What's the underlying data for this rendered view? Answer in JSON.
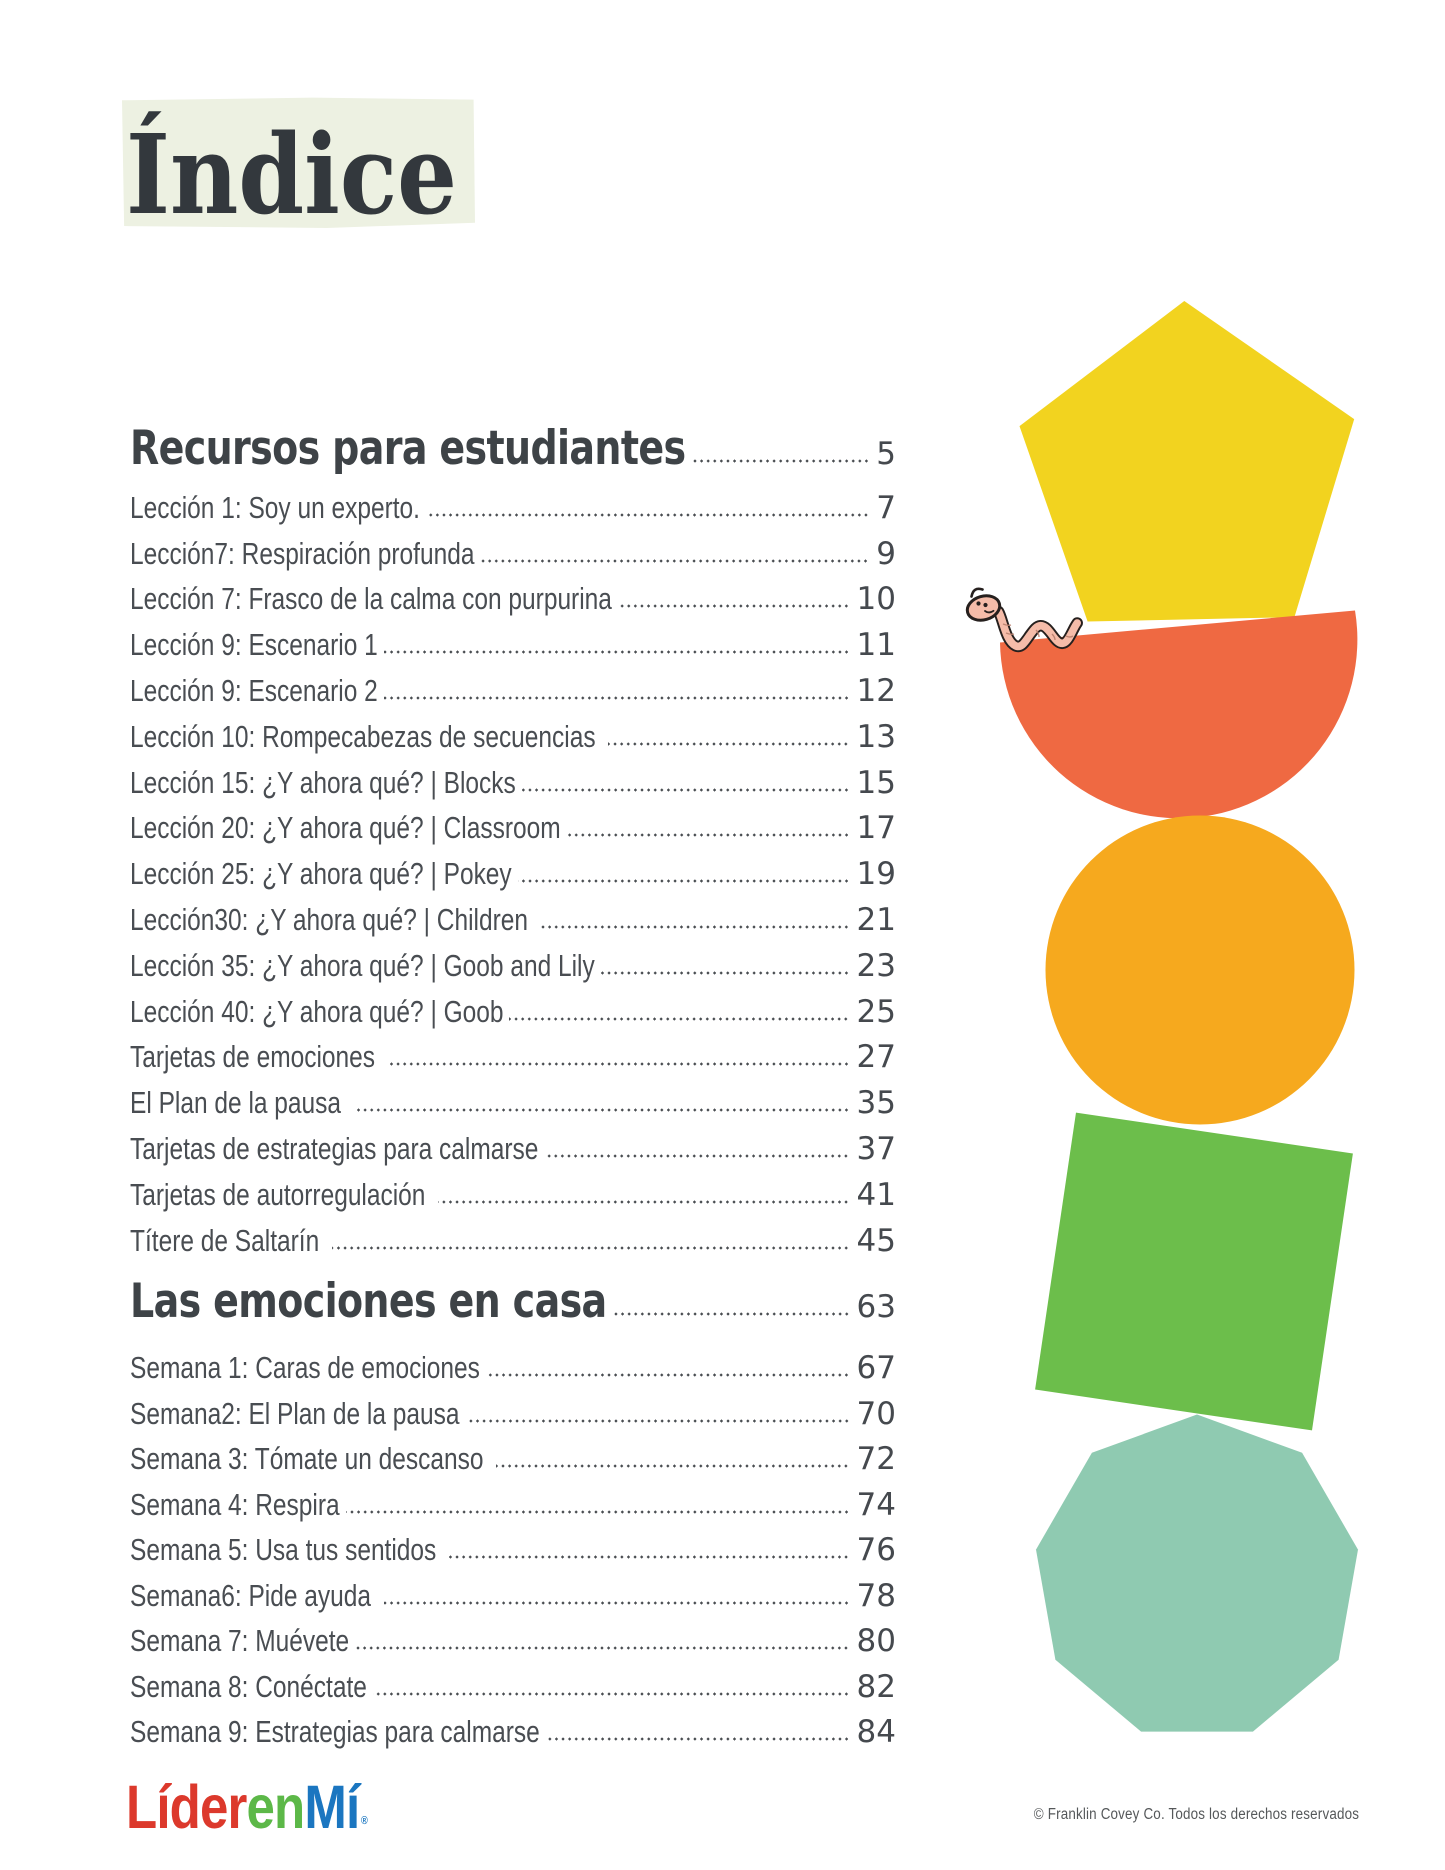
{
  "page": {
    "title": "Índice",
    "background": "#ffffff"
  },
  "toc": {
    "sections": [
      {
        "label": "Recursos para estudiantes",
        "page": "5",
        "items": [
          {
            "label": "Lección 1: Soy un experto.",
            "page": "7"
          },
          {
            "label": "Lección7: Respiración profunda",
            "page": "9"
          },
          {
            "label": "Lección 7: Frasco de la calma con purpurina",
            "page": "10"
          },
          {
            "label": "Lección 9: Escenario 1",
            "page": "11"
          },
          {
            "label": "Lección 9: Escenario 2",
            "page": "12"
          },
          {
            "label": "Lección 10: Rompecabezas de secuencias ",
            "page": "13"
          },
          {
            "label": "Lección 15: ¿Y ahora qué? | Blocks",
            "page": "15"
          },
          {
            "label": "Lección 20: ¿Y ahora qué? | Classroom",
            "page": "17"
          },
          {
            "label": "Lección 25: ¿Y ahora qué? | Pokey",
            "page": "19"
          },
          {
            "label": "Lección30: ¿Y ahora qué? | Children ",
            "page": "21"
          },
          {
            "label": "Lección 35: ¿Y ahora qué? | Goob and Lily",
            "page": "23"
          },
          {
            "label": "Lección 40: ¿Y ahora qué? | Goob",
            "page": "25"
          },
          {
            "label": "Tarjetas de emociones ",
            "page": "27"
          },
          {
            "label": "El Plan de la pausa ",
            "page": "35"
          },
          {
            "label": "Tarjetas de estrategias para calmarse",
            "page": "37"
          },
          {
            "label": "Tarjetas de autorregulación ",
            "page": "41"
          },
          {
            "label": "Títere de Saltarín ",
            "page": "45"
          }
        ]
      },
      {
        "label": "Las emociones en casa",
        "page": "63",
        "items": [
          {
            "label": "Semana 1: Caras de emociones",
            "page": "67"
          },
          {
            "label": "Semana2: El Plan de la pausa",
            "page": "70"
          },
          {
            "label": "Semana 3: Tómate un descanso ",
            "page": "72"
          },
          {
            "label": "Semana 4: Respira",
            "page": "74"
          },
          {
            "label": "Semana 5: Usa tus sentidos ",
            "page": "76"
          },
          {
            "label": "Semana6: Pide ayuda ",
            "page": "78"
          },
          {
            "label": "Semana 7: Muévete",
            "page": "80"
          },
          {
            "label": "Semana 8: Conéctate",
            "page": "82"
          },
          {
            "label": "Semana 9: Estrategias para calmarse",
            "page": "84"
          }
        ]
      }
    ]
  },
  "footer": {
    "logo": {
      "lider": "Líder",
      "en": "en",
      "mi": "Mí",
      "reg": "®"
    },
    "logo_colors": {
      "lider": "#DC392C",
      "en": "#5CB848",
      "mi": "#1B76C0"
    },
    "copyright": "© Franklin Covey Co. Todos los derechos reservados"
  },
  "colors": {
    "title_highlight": "#EDF1E2",
    "title_text": "#33383D",
    "heading_text": "#3E4347",
    "item_text": "#494D52",
    "page_number": "#45494E",
    "leader_dots": "#4A4E52",
    "copyright_text": "#55585A"
  },
  "shapes": {
    "pentagon": "#F2D31F",
    "semicircle": "#EF6942",
    "circle": "#F6A91E",
    "square": "#6CBE4B",
    "nonagon": "#8FCAB1",
    "worm_body": "#F5BCA9",
    "worm_outline": "#26201E"
  }
}
